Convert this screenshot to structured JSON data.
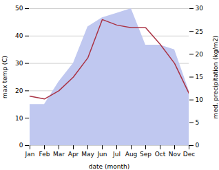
{
  "chart_data": {
    "type": "line",
    "categories": [
      "Jan",
      "Feb",
      "Mar",
      "Apr",
      "May",
      "Jun",
      "Jul",
      "Aug",
      "Sep",
      "Oct",
      "Nov",
      "Dec"
    ],
    "xlabel": "date (month)",
    "ylabel": "max temp (C)",
    "y2label": "med. precipitation (kg/m2)",
    "series": [
      {
        "type": "area",
        "axis": "y2",
        "color": "#c0c8f0",
        "values": [
          9,
          9,
          14,
          18,
          26,
          28,
          29,
          30,
          22,
          22,
          21,
          12
        ]
      },
      {
        "type": "line",
        "color": "#aa3344",
        "values": [
          18,
          17,
          20,
          25,
          32,
          46,
          44,
          43,
          43,
          37,
          30,
          19
        ]
      }
    ],
    "ylim": [
      0,
      50
    ],
    "yticks": [
      0,
      10,
      20,
      30,
      40,
      50
    ],
    "y2lim": [
      0,
      30
    ],
    "y2ticks": [
      0,
      5,
      10,
      15,
      20,
      25,
      30
    ],
    "grid": true
  }
}
